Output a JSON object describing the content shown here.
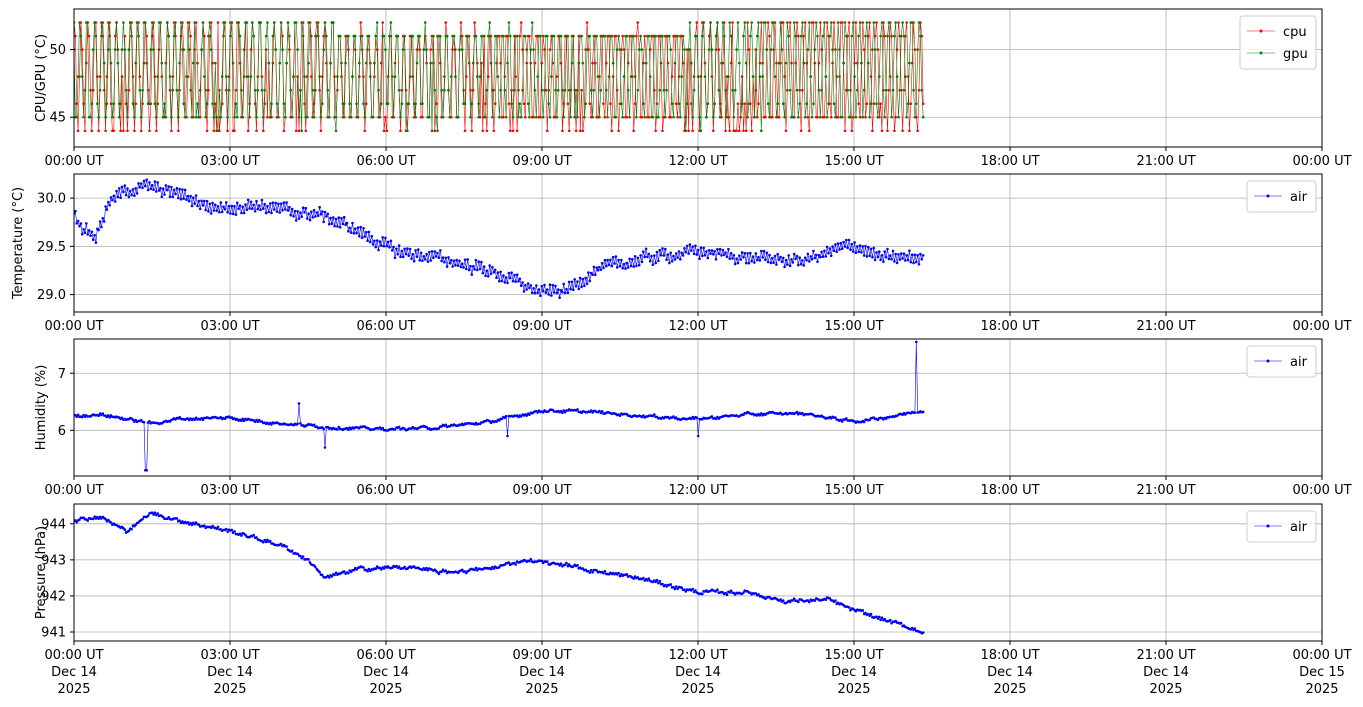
{
  "chart_data": [
    {
      "type": "line",
      "ylabel": "CPU/GPU (°C)",
      "xlim": [
        "2025-12-14T00:00",
        "2025-12-15T00:00"
      ],
      "ylim": [
        42.8,
        53.0
      ],
      "yticks": [
        45,
        50
      ],
      "grid": true,
      "legend_position": "top-right",
      "data_range": [
        "2025-12-14T00:00",
        "2025-12-14T16:20"
      ],
      "series": [
        {
          "name": "cpu",
          "color": "#ff0000",
          "kind": "oscillating",
          "min": 43.5,
          "max": 52.5,
          "step": 1,
          "note_values": [
            45,
            46,
            47,
            48,
            49,
            50,
            51,
            52
          ]
        },
        {
          "name": "gpu",
          "color": "#008000",
          "kind": "oscillating",
          "min": 44,
          "max": 52.5,
          "step": 1,
          "note_values": [
            44,
            45,
            46,
            47,
            48,
            49,
            50,
            51,
            52
          ]
        }
      ]
    },
    {
      "type": "line",
      "ylabel": "Temperature (°C)",
      "xlim": [
        "2025-12-14T00:00",
        "2025-12-15T00:00"
      ],
      "ylim": [
        28.82,
        30.25
      ],
      "yticks": [
        29.0,
        29.5,
        30.0
      ],
      "grid": true,
      "legend_position": "top-right",
      "series": [
        {
          "name": "air",
          "color": "#0000ff",
          "trend": [
            [
              "2025-12-14T00:00",
              29.85
            ],
            [
              "2025-12-14T00:10",
              29.7
            ],
            [
              "2025-12-14T00:25",
              29.6
            ],
            [
              "2025-12-14T00:40",
              29.95
            ],
            [
              "2025-12-14T01:00",
              30.08
            ],
            [
              "2025-12-14T01:20",
              30.12
            ],
            [
              "2025-12-14T02:00",
              30.05
            ],
            [
              "2025-12-14T02:40",
              29.9
            ],
            [
              "2025-12-14T03:30",
              29.93
            ],
            [
              "2025-12-14T04:15",
              29.85
            ],
            [
              "2025-12-14T04:45",
              29.83
            ],
            [
              "2025-12-14T05:30",
              29.65
            ],
            [
              "2025-12-14T06:10",
              29.45
            ],
            [
              "2025-12-14T07:00",
              29.38
            ],
            [
              "2025-12-14T08:00",
              29.25
            ],
            [
              "2025-12-14T09:00",
              29.02
            ],
            [
              "2025-12-14T09:30",
              29.05
            ],
            [
              "2025-12-14T10:00",
              29.25
            ],
            [
              "2025-12-14T11:00",
              29.38
            ],
            [
              "2025-12-14T12:00",
              29.45
            ],
            [
              "2025-12-14T13:00",
              29.38
            ],
            [
              "2025-12-14T14:00",
              29.35
            ],
            [
              "2025-12-14T15:00",
              29.52
            ],
            [
              "2025-12-14T15:30",
              29.38
            ],
            [
              "2025-12-14T16:20",
              29.38
            ]
          ],
          "spread": 0.07
        }
      ]
    },
    {
      "type": "line",
      "ylabel": "Humidity (%)",
      "xlim": [
        "2025-12-14T00:00",
        "2025-12-15T00:00"
      ],
      "ylim": [
        5.2,
        7.6
      ],
      "yticks": [
        6,
        7
      ],
      "grid": true,
      "legend_position": "top-right",
      "series": [
        {
          "name": "air",
          "color": "#0000ff",
          "trend": [
            [
              "2025-12-14T00:00",
              6.25
            ],
            [
              "2025-12-14T00:30",
              6.28
            ],
            [
              "2025-12-14T01:30",
              6.12
            ],
            [
              "2025-12-14T02:00",
              6.2
            ],
            [
              "2025-12-14T03:00",
              6.22
            ],
            [
              "2025-12-14T04:00",
              6.12
            ],
            [
              "2025-12-14T05:00",
              6.05
            ],
            [
              "2025-12-14T06:00",
              6.02
            ],
            [
              "2025-12-14T07:00",
              6.05
            ],
            [
              "2025-12-14T08:00",
              6.15
            ],
            [
              "2025-12-14T09:00",
              6.35
            ],
            [
              "2025-12-14T10:00",
              6.32
            ],
            [
              "2025-12-14T11:00",
              6.25
            ],
            [
              "2025-12-14T12:00",
              6.2
            ],
            [
              "2025-12-14T13:00",
              6.28
            ],
            [
              "2025-12-14T14:00",
              6.3
            ],
            [
              "2025-12-14T15:00",
              6.15
            ],
            [
              "2025-12-14T15:45",
              6.25
            ],
            [
              "2025-12-14T16:20",
              6.35
            ]
          ],
          "spread": 0.04,
          "spikes": [
            [
              "2025-12-14T01:23",
              5.3
            ],
            [
              "2025-12-14T04:20",
              6.47
            ],
            [
              "2025-12-14T04:50",
              5.7
            ],
            [
              "2025-12-14T08:20",
              5.9
            ],
            [
              "2025-12-14T12:00",
              5.9
            ],
            [
              "2025-12-14T16:12",
              7.55
            ]
          ]
        }
      ]
    },
    {
      "type": "line",
      "ylabel": "Pressure (hPa)",
      "xlim": [
        "2025-12-14T00:00",
        "2025-12-15T00:00"
      ],
      "ylim": [
        940.75,
        944.55
      ],
      "yticks": [
        941,
        942,
        943,
        944
      ],
      "grid": true,
      "legend_position": "top-right",
      "series": [
        {
          "name": "air",
          "color": "#0000ff",
          "trend": [
            [
              "2025-12-14T00:00",
              944.1
            ],
            [
              "2025-12-14T00:30",
              944.2
            ],
            [
              "2025-12-14T01:00",
              943.8
            ],
            [
              "2025-12-14T01:30",
              944.3
            ],
            [
              "2025-12-14T02:00",
              944.1
            ],
            [
              "2025-12-14T03:00",
              943.8
            ],
            [
              "2025-12-14T04:00",
              943.4
            ],
            [
              "2025-12-14T04:30",
              943.0
            ],
            [
              "2025-12-14T04:50",
              942.5
            ],
            [
              "2025-12-14T05:30",
              942.75
            ],
            [
              "2025-12-14T06:30",
              942.8
            ],
            [
              "2025-12-14T07:00",
              942.65
            ],
            [
              "2025-12-14T08:00",
              942.75
            ],
            [
              "2025-12-14T08:40",
              943.0
            ],
            [
              "2025-12-14T09:30",
              942.85
            ],
            [
              "2025-12-14T10:00",
              942.7
            ],
            [
              "2025-12-14T11:00",
              942.45
            ],
            [
              "2025-12-14T12:00",
              942.1
            ],
            [
              "2025-12-14T13:00",
              942.1
            ],
            [
              "2025-12-14T13:40",
              941.85
            ],
            [
              "2025-12-14T14:30",
              941.9
            ],
            [
              "2025-12-14T15:00",
              941.6
            ],
            [
              "2025-12-14T15:40",
              941.3
            ],
            [
              "2025-12-14T16:20",
              941.0
            ]
          ],
          "spread": 0.08
        }
      ]
    }
  ],
  "x_ticks": [
    "00:00 UT",
    "03:00 UT",
    "06:00 UT",
    "09:00 UT",
    "12:00 UT",
    "15:00 UT",
    "18:00 UT",
    "21:00 UT",
    "00:00 UT"
  ],
  "x_tick_dates": [
    "Dec 14",
    "Dec 14",
    "Dec 14",
    "Dec 14",
    "Dec 14",
    "Dec 14",
    "Dec 14",
    "Dec 14",
    "Dec 15"
  ],
  "x_tick_years": [
    "2025",
    "2025",
    "2025",
    "2025",
    "2025",
    "2025",
    "2025",
    "2025",
    "2025"
  ]
}
